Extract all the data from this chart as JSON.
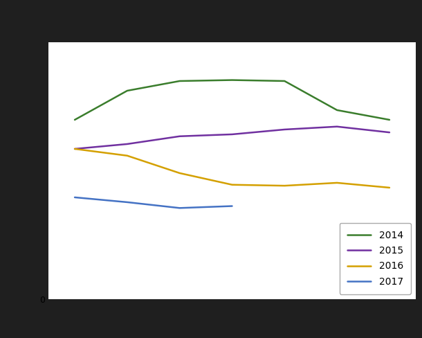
{
  "series": {
    "2014": {
      "x": [
        2013,
        2014,
        2015,
        2016,
        2017,
        2018,
        2019
      ],
      "y": [
        185,
        215,
        225,
        226,
        225,
        195,
        185
      ],
      "color": "#3a7d2c",
      "linewidth": 1.8
    },
    "2015": {
      "x": [
        2013,
        2014,
        2015,
        2016,
        2017,
        2018,
        2019
      ],
      "y": [
        155,
        160,
        168,
        170,
        175,
        178,
        172
      ],
      "color": "#7030a0",
      "linewidth": 1.8
    },
    "2016": {
      "x": [
        2013,
        2014,
        2015,
        2016,
        2017,
        2018,
        2019
      ],
      "y": [
        155,
        148,
        130,
        118,
        117,
        120,
        115
      ],
      "color": "#d4a000",
      "linewidth": 1.8
    },
    "2017": {
      "x": [
        2013,
        2014,
        2015,
        2016
      ],
      "y": [
        105,
        100,
        94,
        96
      ],
      "color": "#4472c4",
      "linewidth": 1.8
    }
  },
  "xlim": [
    2012.5,
    2019.5
  ],
  "ylim": [
    0,
    265
  ],
  "grid_color": "#cccccc",
  "fig_facecolor": "#1f1f1f",
  "ax_facecolor": "#ffffff",
  "legend_loc": "lower right",
  "legend_labels": [
    "2014",
    "2015",
    "2016",
    "2017"
  ]
}
